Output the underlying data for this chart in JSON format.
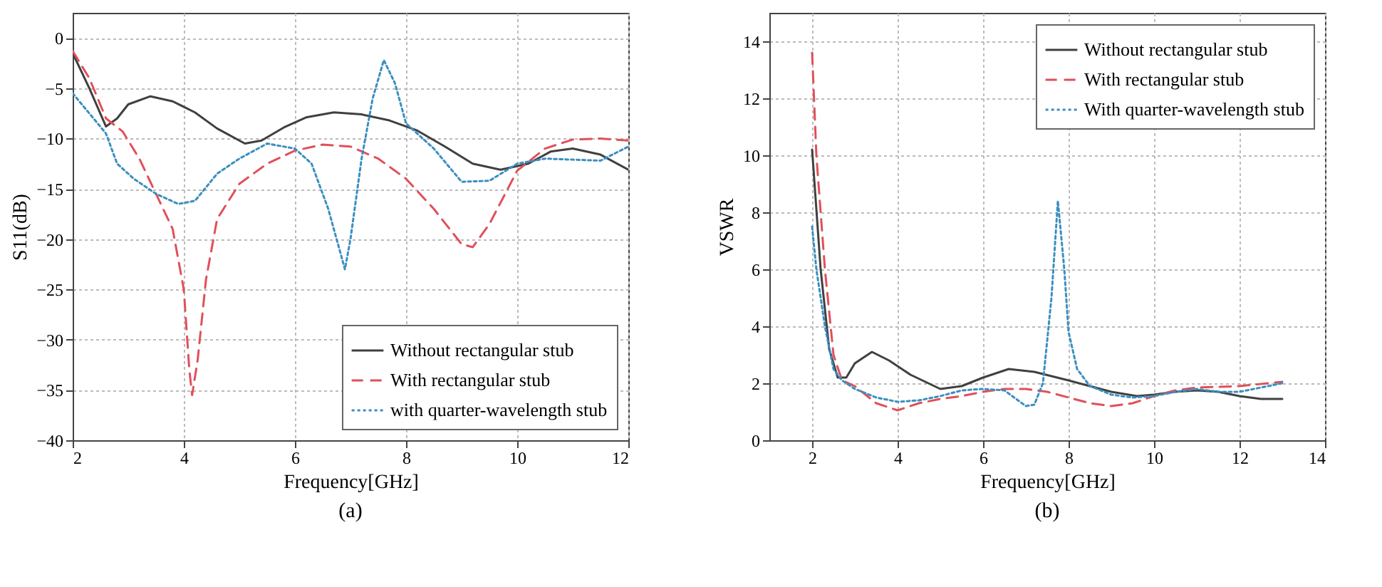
{
  "chart_data": [
    {
      "type": "line",
      "xlabel": "Frequency[GHz]",
      "ylabel": "S11(dB)",
      "annotations": [
        "(a)"
      ],
      "xlim": [
        2,
        12
      ],
      "xticks": [
        2,
        4,
        6,
        8,
        10,
        12
      ],
      "ylim": [
        -40,
        2.5
      ],
      "yticks": [
        -40,
        -35,
        -30,
        -25,
        -20,
        -15,
        -10,
        -5,
        0
      ],
      "grid": true,
      "legend": "bottom right",
      "series": [
        {
          "name": "Without rectangular stub",
          "color": "#404040",
          "line_style": "solid",
          "x": [
            2,
            2.3,
            2.6,
            2.8,
            3,
            3.4,
            3.8,
            4.2,
            4.6,
            5.1,
            5.4,
            5.8,
            6.2,
            6.7,
            7.2,
            7.7,
            8.2,
            8.7,
            9.2,
            9.7,
            10.2,
            10.6,
            11,
            11.5,
            12
          ],
          "values": [
            -1.5,
            -5,
            -8.8,
            -8,
            -6.6,
            -5.8,
            -6.3,
            -7.4,
            -9,
            -10.5,
            -10.2,
            -8.9,
            -7.9,
            -7.4,
            -7.6,
            -8.2,
            -9.2,
            -10.8,
            -12.5,
            -13.1,
            -12.5,
            -11.3,
            -11,
            -11.6,
            -13.1
          ]
        },
        {
          "name": "With rectangular stub",
          "color": "#e0505a",
          "line_style": "dashed",
          "x": [
            2,
            2.3,
            2.6,
            2.9,
            3.2,
            3.5,
            3.8,
            4.0,
            4.1,
            4.15,
            4.25,
            4.4,
            4.6,
            5,
            5.5,
            6,
            6.5,
            7,
            7.5,
            8,
            8.5,
            9,
            9.2,
            9.5,
            10,
            10.5,
            11,
            11.5,
            12
          ],
          "values": [
            -1.3,
            -4,
            -8,
            -9.3,
            -12,
            -15.5,
            -19,
            -25,
            -33,
            -35.5,
            -32,
            -24,
            -18,
            -14.5,
            -12.5,
            -11.2,
            -10.6,
            -10.8,
            -12,
            -14,
            -17,
            -20.5,
            -20.8,
            -18.5,
            -13.2,
            -11,
            -10.1,
            -10,
            -10.2
          ]
        },
        {
          "name": "with quarter-wavelength stub",
          "color": "#3a8fc0",
          "line_style": "dotted",
          "x": [
            2,
            2.3,
            2.6,
            2.8,
            3.1,
            3.5,
            3.9,
            4.2,
            4.6,
            5,
            5.5,
            6,
            6.3,
            6.6,
            6.8,
            6.9,
            7,
            7.2,
            7.4,
            7.6,
            7.8,
            8,
            8.5,
            9,
            9.5,
            10,
            10.5,
            11,
            11.5,
            12
          ],
          "values": [
            -5.5,
            -7.5,
            -9.5,
            -12.5,
            -14,
            -15.5,
            -16.5,
            -16.2,
            -13.5,
            -12,
            -10.5,
            -11,
            -12.5,
            -17,
            -21,
            -23,
            -20,
            -12,
            -6,
            -2.2,
            -4.5,
            -8.5,
            -11,
            -14.3,
            -14.2,
            -12.5,
            -12,
            -12.1,
            -12.2,
            -10.8
          ]
        }
      ]
    },
    {
      "type": "line",
      "xlabel": "Frequency[GHz]",
      "ylabel": "VSWR",
      "annotations": [
        "(b)"
      ],
      "xlim": [
        1,
        14
      ],
      "xticks": [
        2,
        4,
        6,
        8,
        10,
        12,
        14
      ],
      "ylim": [
        0,
        15
      ],
      "yticks": [
        0,
        2,
        4,
        6,
        8,
        10,
        12,
        14
      ],
      "grid": true,
      "legend": "top right",
      "series": [
        {
          "name": "Without rectangular stub",
          "color": "#404040",
          "line_style": "solid",
          "x": [
            2,
            2.2,
            2.4,
            2.6,
            2.8,
            3,
            3.4,
            3.8,
            4.3,
            5,
            5.5,
            6,
            6.6,
            7.2,
            8,
            9,
            9.6,
            10,
            10.5,
            11,
            11.5,
            12,
            12.5,
            13
          ],
          "values": [
            10.2,
            6,
            3.2,
            2.2,
            2.2,
            2.7,
            3.1,
            2.8,
            2.3,
            1.8,
            1.9,
            2.2,
            2.5,
            2.4,
            2.1,
            1.7,
            1.55,
            1.6,
            1.7,
            1.75,
            1.7,
            1.55,
            1.45,
            1.45
          ]
        },
        {
          "name": "With rectangular stub",
          "color": "#e0505a",
          "line_style": "dashed",
          "x": [
            2,
            2.1,
            2.3,
            2.5,
            2.7,
            3,
            3.5,
            4,
            4.5,
            5,
            5.5,
            6,
            6.5,
            7,
            7.5,
            8,
            8.5,
            9,
            9.5,
            10,
            10.5,
            11,
            12,
            13
          ],
          "values": [
            13.6,
            10,
            6,
            3,
            2.1,
            1.9,
            1.3,
            1.05,
            1.3,
            1.45,
            1.55,
            1.7,
            1.8,
            1.8,
            1.7,
            1.5,
            1.3,
            1.2,
            1.3,
            1.55,
            1.75,
            1.85,
            1.9,
            2.05
          ]
        },
        {
          "name": "With quarter-wavelength stub",
          "color": "#3a8fc0",
          "line_style": "dotted",
          "x": [
            2,
            2.1,
            2.3,
            2.5,
            2.7,
            3,
            3.5,
            4,
            4.5,
            5,
            5.5,
            6,
            6.5,
            7,
            7.2,
            7.4,
            7.6,
            7.75,
            7.9,
            8,
            8.2,
            8.5,
            9,
            9.5,
            10,
            10.5,
            11,
            11.5,
            12,
            13
          ],
          "values": [
            7.5,
            6,
            4,
            2.5,
            2.1,
            1.8,
            1.5,
            1.35,
            1.4,
            1.55,
            1.75,
            1.8,
            1.75,
            1.2,
            1.25,
            2,
            5,
            8.4,
            6,
            3.8,
            2.5,
            1.9,
            1.6,
            1.5,
            1.55,
            1.7,
            1.8,
            1.7,
            1.7,
            2.0
          ]
        }
      ]
    }
  ]
}
